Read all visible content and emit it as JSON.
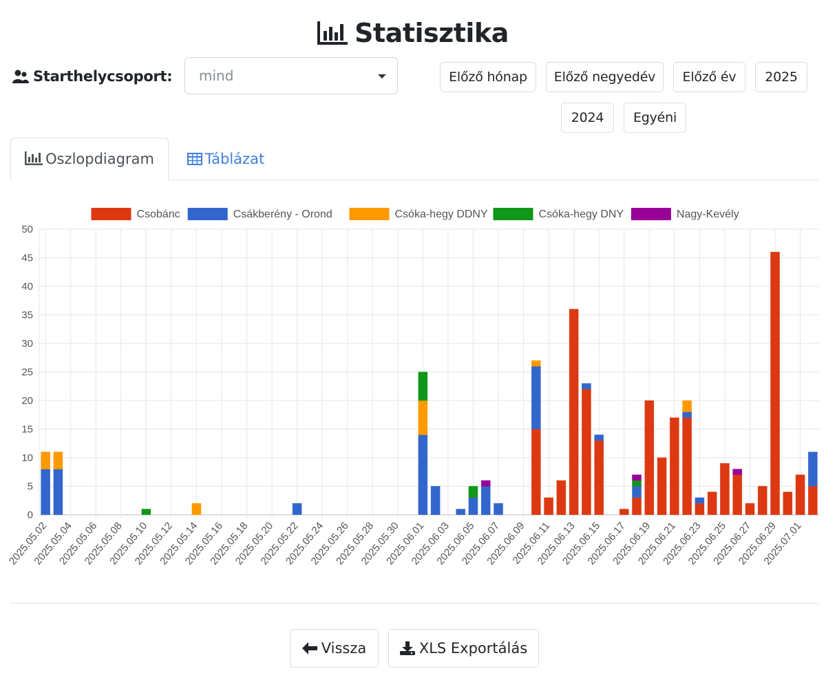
{
  "page": {
    "title": "Statisztika",
    "title_icon": "bar-chart-icon"
  },
  "filter": {
    "label": "Starthelycsoport:",
    "label_icon": "users-icon",
    "select_value": "mind"
  },
  "period_buttons": {
    "prev_month": "Előző hónap",
    "prev_quarter": "Előző negyedév",
    "prev_year": "Előző év",
    "y2025": "2025",
    "y2024": "2024",
    "custom": "Egyéni"
  },
  "tabs": {
    "chart": "Oszlopdiagram",
    "table": "Táblázat",
    "active": "chart"
  },
  "actions": {
    "back": "Vissza",
    "export": "XLS Exportálás"
  },
  "chart_data": {
    "type": "bar",
    "stacked": true,
    "ylim": [
      0,
      50
    ],
    "ytick_step": 5,
    "grid": true,
    "legend_position": "top",
    "categories": [
      "2025.05.02",
      "2025.05.03",
      "2025.05.04",
      "2025.05.05",
      "2025.05.06",
      "2025.05.07",
      "2025.05.08",
      "2025.05.09",
      "2025.05.10",
      "2025.05.11",
      "2025.05.12",
      "2025.05.13",
      "2025.05.14",
      "2025.05.15",
      "2025.05.16",
      "2025.05.17",
      "2025.05.18",
      "2025.05.19",
      "2025.05.20",
      "2025.05.21",
      "2025.05.22",
      "2025.05.23",
      "2025.05.24",
      "2025.05.25",
      "2025.05.26",
      "2025.05.27",
      "2025.05.28",
      "2025.05.29",
      "2025.05.30",
      "2025.05.31",
      "2025.06.01",
      "2025.06.02",
      "2025.06.03",
      "2025.06.04",
      "2025.06.05",
      "2025.06.06",
      "2025.06.07",
      "2025.06.08",
      "2025.06.09",
      "2025.06.10",
      "2025.06.11",
      "2025.06.12",
      "2025.06.13",
      "2025.06.14",
      "2025.06.15",
      "2025.06.16",
      "2025.06.17",
      "2025.06.18",
      "2025.06.19",
      "2025.06.20",
      "2025.06.21",
      "2025.06.22",
      "2025.06.23",
      "2025.06.24",
      "2025.06.25",
      "2025.06.26",
      "2025.06.27",
      "2025.06.28",
      "2025.06.29",
      "2025.06.30",
      "2025.07.01",
      "2025.07.02"
    ],
    "xtick_labels": [
      "2025.05.02",
      "2025.05.04",
      "2025.05.06",
      "2025.05.08",
      "2025.05.10",
      "2025.05.12",
      "2025.05.14",
      "2025.05.16",
      "2025.05.18",
      "2025.05.20",
      "2025.05.22",
      "2025.05.24",
      "2025.05.26",
      "2025.05.28",
      "2025.05.30",
      "2025.06.01",
      "2025.06.03",
      "2025.06.05",
      "2025.06.07",
      "2025.06.09",
      "2025.06.11",
      "2025.06.13",
      "2025.06.15",
      "2025.06.17",
      "2025.06.19",
      "2025.06.21",
      "2025.06.23",
      "2025.06.25",
      "2025.06.27",
      "2025.06.29",
      "2025.07.01"
    ],
    "series": [
      {
        "name": "Csobánc",
        "color": "#dc3912",
        "values": [
          0,
          0,
          0,
          0,
          0,
          0,
          0,
          0,
          0,
          0,
          0,
          0,
          0,
          0,
          0,
          0,
          0,
          0,
          0,
          0,
          0,
          0,
          0,
          0,
          0,
          0,
          0,
          0,
          0,
          0,
          0,
          0,
          0,
          0,
          0,
          0,
          0,
          0,
          0,
          15,
          3,
          6,
          36,
          22,
          13,
          0,
          1,
          3,
          20,
          10,
          17,
          17,
          2,
          4,
          9,
          7,
          2,
          5,
          46,
          4,
          7,
          5
        ]
      },
      {
        "name": "Csákberény - Orond",
        "color": "#3366cc",
        "values": [
          8,
          8,
          0,
          0,
          0,
          0,
          0,
          0,
          0,
          0,
          0,
          0,
          0,
          0,
          0,
          0,
          0,
          0,
          0,
          0,
          2,
          0,
          0,
          0,
          0,
          0,
          0,
          0,
          0,
          0,
          14,
          5,
          0,
          1,
          3,
          5,
          2,
          0,
          0,
          11,
          0,
          0,
          0,
          1,
          1,
          0,
          0,
          2,
          0,
          0,
          0,
          1,
          1,
          0,
          0,
          0,
          0,
          0,
          0,
          0,
          0,
          6
        ]
      },
      {
        "name": "Csóka-hegy DDNY",
        "color": "#ff9900",
        "values": [
          3,
          3,
          0,
          0,
          0,
          0,
          0,
          0,
          0,
          0,
          0,
          0,
          2,
          0,
          0,
          0,
          0,
          0,
          0,
          0,
          0,
          0,
          0,
          0,
          0,
          0,
          0,
          0,
          0,
          0,
          6,
          0,
          0,
          0,
          0,
          0,
          0,
          0,
          0,
          1,
          0,
          0,
          0,
          0,
          0,
          0,
          0,
          0,
          0,
          0,
          0,
          2,
          0,
          0,
          0,
          0,
          0,
          0,
          0,
          0,
          0,
          0
        ]
      },
      {
        "name": "Csóka-hegy DNY",
        "color": "#109618",
        "values": [
          0,
          0,
          0,
          0,
          0,
          0,
          0,
          0,
          1,
          0,
          0,
          0,
          0,
          0,
          0,
          0,
          0,
          0,
          0,
          0,
          0,
          0,
          0,
          0,
          0,
          0,
          0,
          0,
          0,
          0,
          5,
          0,
          0,
          0,
          2,
          0,
          0,
          0,
          0,
          0,
          0,
          0,
          0,
          0,
          0,
          0,
          0,
          1,
          0,
          0,
          0,
          0,
          0,
          0,
          0,
          0,
          0,
          0,
          0,
          0,
          0,
          0
        ]
      },
      {
        "name": "Nagy-Kevély",
        "color": "#990099",
        "values": [
          0,
          0,
          0,
          0,
          0,
          0,
          0,
          0,
          0,
          0,
          0,
          0,
          0,
          0,
          0,
          0,
          0,
          0,
          0,
          0,
          0,
          0,
          0,
          0,
          0,
          0,
          0,
          0,
          0,
          0,
          0,
          0,
          0,
          0,
          0,
          1,
          0,
          0,
          0,
          0,
          0,
          0,
          0,
          0,
          0,
          0,
          0,
          1,
          0,
          0,
          0,
          0,
          0,
          0,
          0,
          1,
          0,
          0,
          0,
          0,
          0,
          0
        ]
      }
    ]
  }
}
